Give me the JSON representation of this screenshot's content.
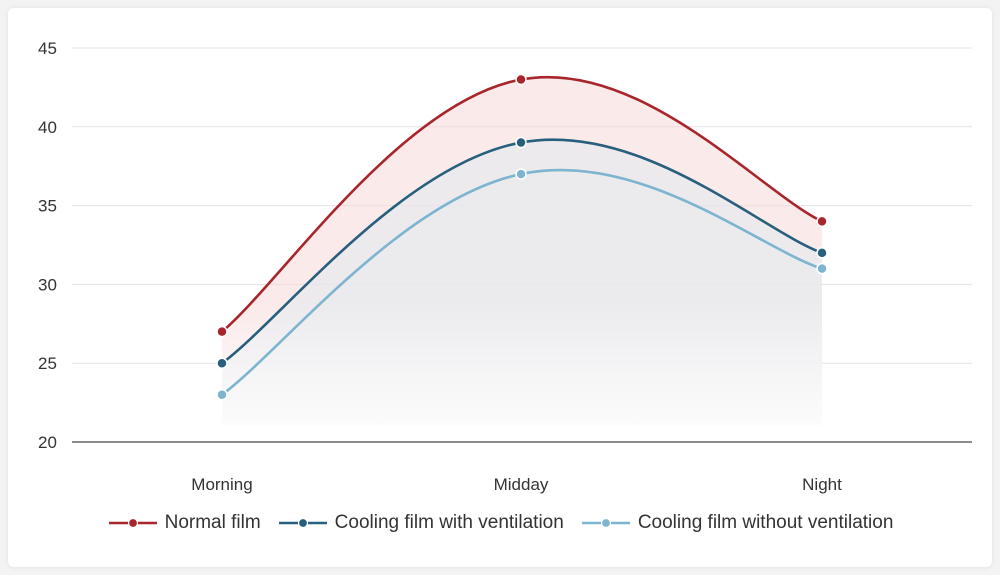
{
  "chart_data": {
    "type": "line",
    "title": "",
    "xlabel": "",
    "ylabel": "",
    "categories": [
      "Morning",
      "Midday",
      "Night"
    ],
    "ylim": [
      20,
      45
    ],
    "yticks": [
      20,
      25,
      30,
      35,
      40,
      45
    ],
    "grid": true,
    "legend_position": "bottom",
    "series": [
      {
        "name": "Normal film",
        "values": [
          27,
          43,
          34
        ],
        "color": "#a8262b",
        "fill": "#f7d9d9"
      },
      {
        "name": "Cooling film with ventilation",
        "values": [
          25,
          39,
          32
        ],
        "color": "#275f7d",
        "fill": "#e4e9ef"
      },
      {
        "name": "Cooling film without ventilation",
        "values": [
          23,
          37,
          31
        ],
        "color": "#7db4cf",
        "fill": "#e9ebee"
      }
    ]
  }
}
